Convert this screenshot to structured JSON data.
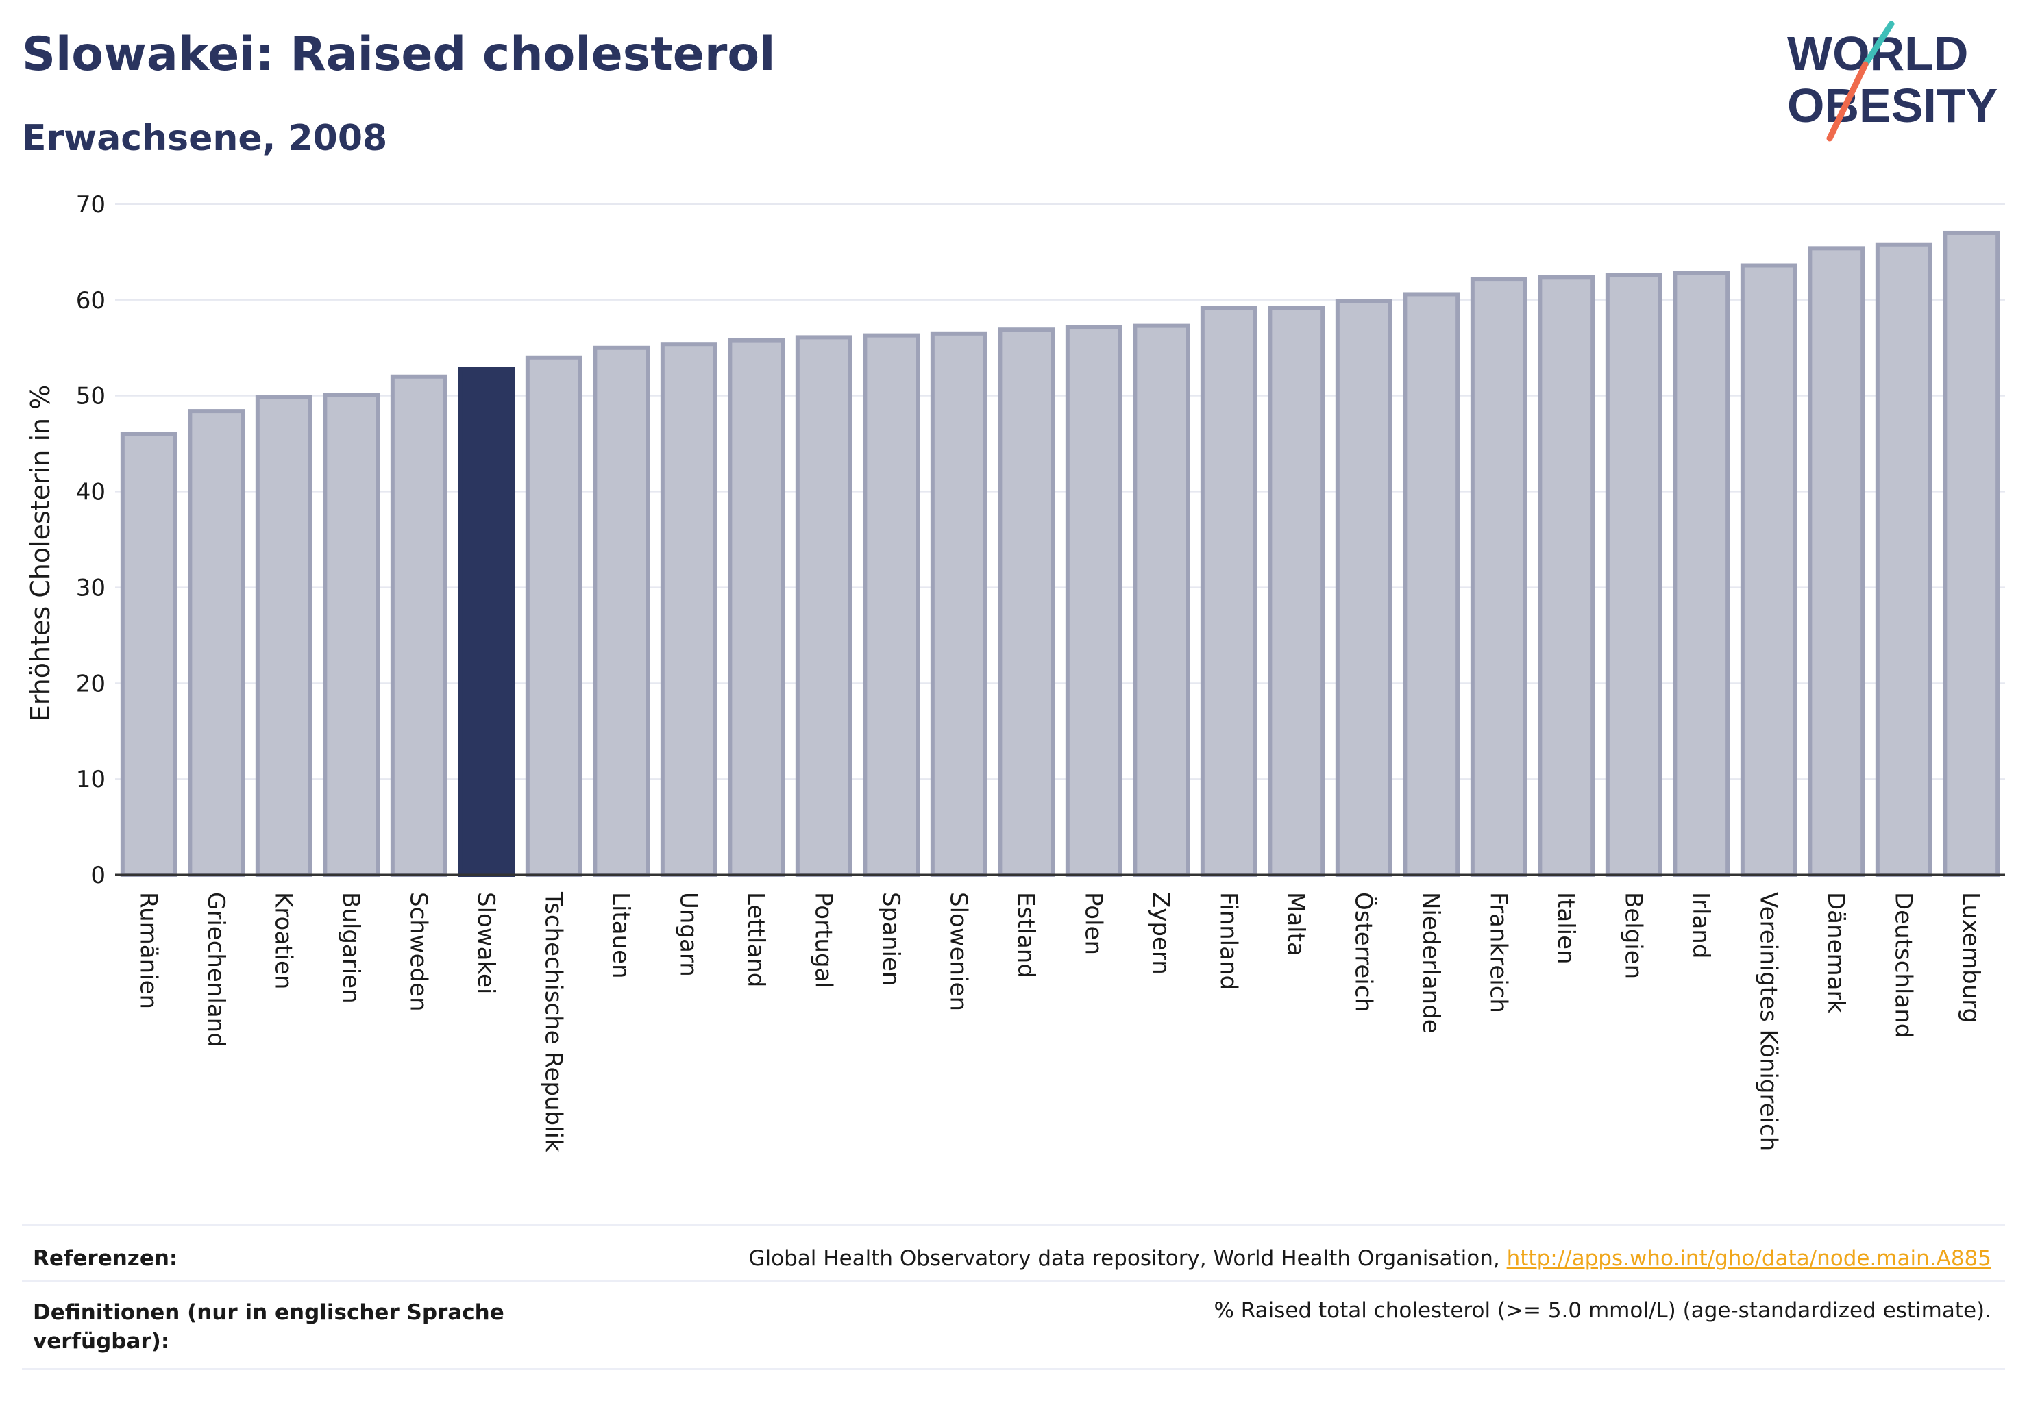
{
  "header": {
    "title": "Slowakei: Raised cholesterol",
    "subtitle": "Erwachsene, 2008"
  },
  "logo": {
    "line1": "WORLD",
    "line2": "OBESITY"
  },
  "colors": {
    "highlight_bar": "#2b365f",
    "bar_fill": "#bfc2cf",
    "bar_stroke": "#9ea2b8",
    "text_dark": "#2a345f",
    "logo_teal": "#3fbfb8",
    "logo_orange": "#ef6a4c"
  },
  "chart_data": {
    "type": "bar",
    "ylabel": "Erhöhtes Cholesterin in %",
    "xlabel": "",
    "ylim": [
      0,
      70
    ],
    "yticks": [
      0,
      10,
      20,
      30,
      40,
      50,
      60,
      70
    ],
    "grid": true,
    "highlight": "Slowakei",
    "categories": [
      "Rumänien",
      "Griechenland",
      "Kroatien",
      "Bulgarien",
      "Schweden",
      "Slowakei",
      "Tschechische Republik",
      "Litauen",
      "Ungarn",
      "Lettland",
      "Portugal",
      "Spanien",
      "Slowenien",
      "Estland",
      "Polen",
      "Zypern",
      "Finnland",
      "Malta",
      "Österreich",
      "Niederlande",
      "Frankreich",
      "Italien",
      "Belgien",
      "Irland",
      "Vereinigtes Königreich",
      "Dänemark",
      "Deutschland",
      "Luxemburg"
    ],
    "values": [
      46.0,
      48.4,
      49.9,
      50.1,
      52.0,
      52.8,
      54.0,
      55.0,
      55.4,
      55.8,
      56.1,
      56.3,
      56.5,
      56.9,
      57.2,
      57.3,
      59.2,
      59.2,
      59.9,
      60.6,
      62.2,
      62.4,
      62.6,
      62.8,
      63.6,
      65.4,
      65.8,
      67.0
    ]
  },
  "references": {
    "ref_label": "Referenzen:",
    "ref_text": "Global Health Observatory data repository, World Health Organisation, ",
    "ref_link": "http://apps.who.int/gho/data/node.main.A885",
    "def_label": "Definitionen (nur in englischer Sprache verfügbar):",
    "def_text": "% Raised total cholesterol (>= 5.0 mmol/L) (age-standardized estimate)."
  }
}
